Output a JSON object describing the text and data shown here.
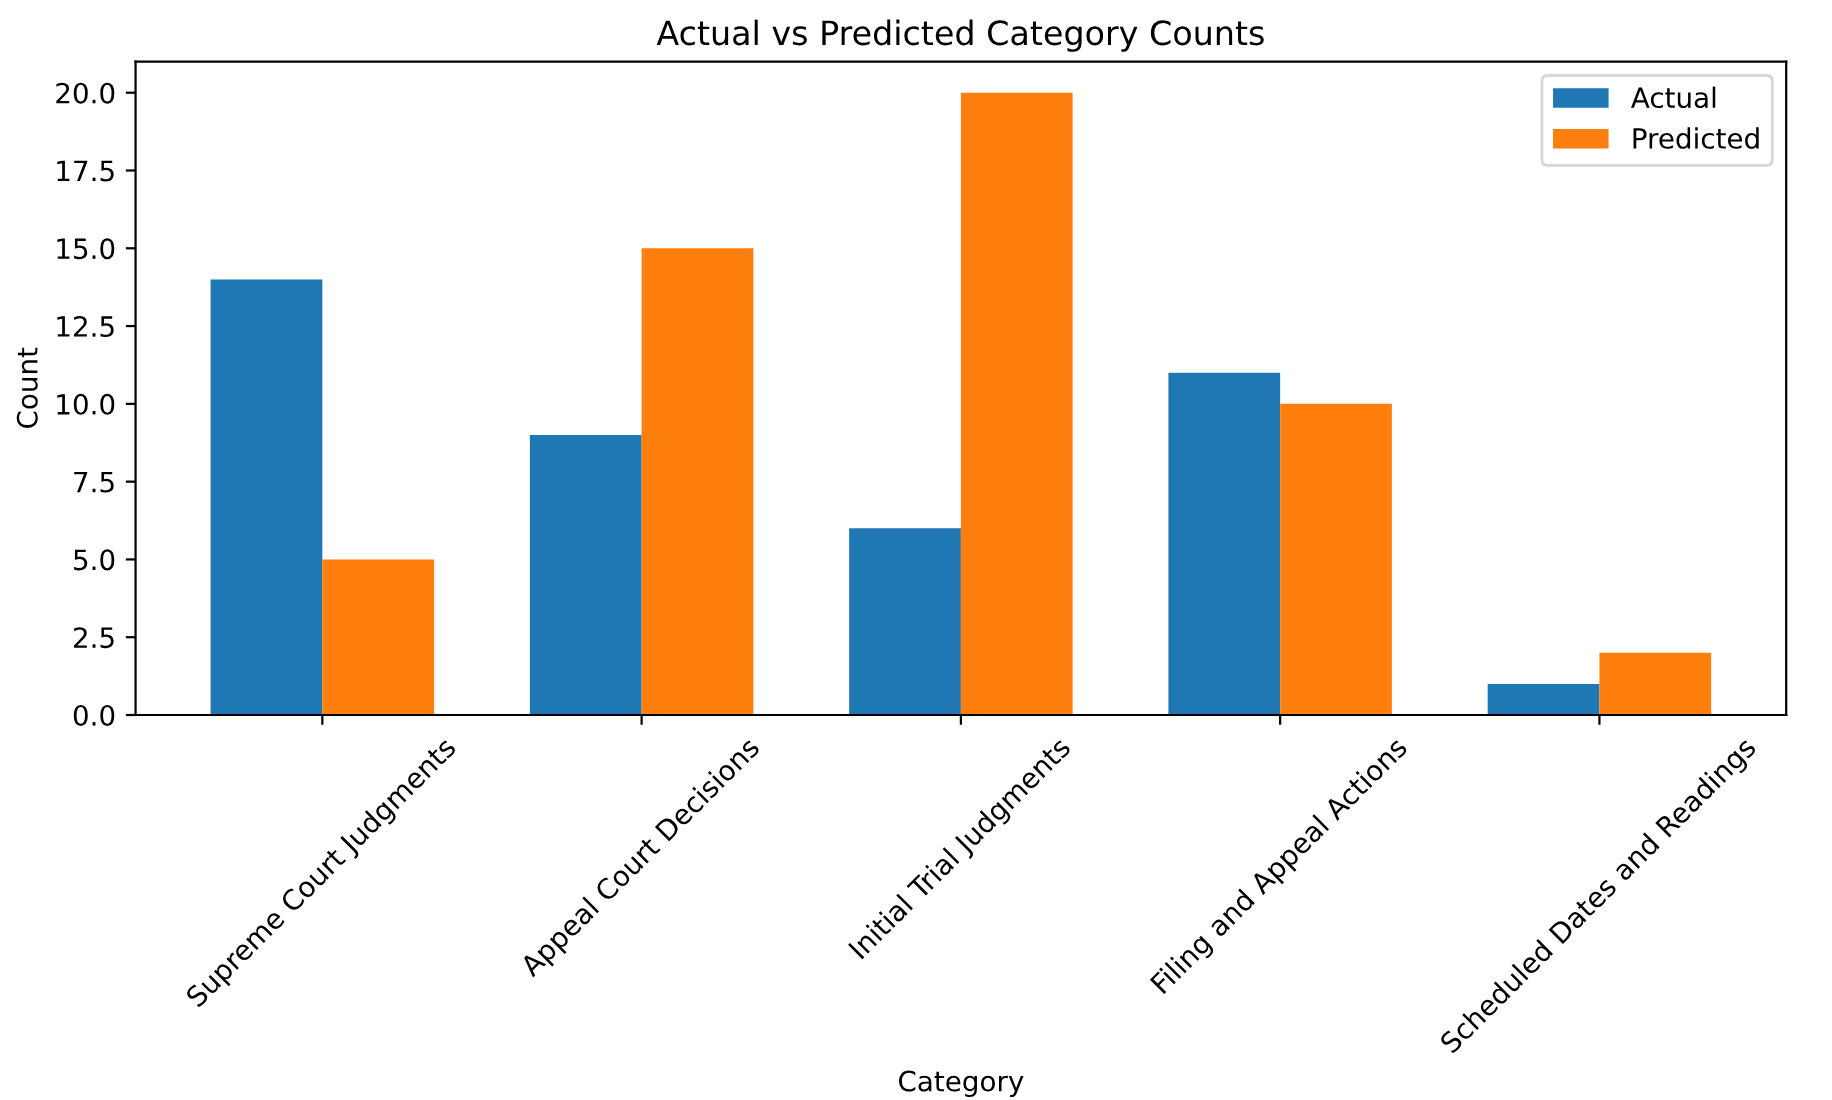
{
  "chart_data": {
    "type": "bar",
    "title": "Actual vs Predicted Category Counts",
    "xlabel": "Category",
    "ylabel": "Count",
    "categories": [
      "Supreme Court Judgments",
      "Appeal Court Decisions",
      "Initial Trial Judgments",
      "Filing and Appeal Actions",
      "Scheduled Dates and Readings"
    ],
    "series": [
      {
        "name": "Actual",
        "color": "#1f77b4",
        "values": [
          14,
          9,
          6,
          11,
          1
        ]
      },
      {
        "name": "Predicted",
        "color": "#ff7f0e",
        "values": [
          5,
          15,
          20,
          10,
          2
        ]
      }
    ],
    "ylim": [
      0,
      21
    ],
    "yticks": [
      {
        "value": 0,
        "label": "0.0"
      },
      {
        "value": 2.5,
        "label": "2.5"
      },
      {
        "value": 5,
        "label": "5.0"
      },
      {
        "value": 7.5,
        "label": "7.5"
      },
      {
        "value": 10,
        "label": "10.0"
      },
      {
        "value": 12.5,
        "label": "12.5"
      },
      {
        "value": 15,
        "label": "15.0"
      },
      {
        "value": 17.5,
        "label": "17.5"
      },
      {
        "value": 20,
        "label": "20.0"
      }
    ],
    "legend": "top right",
    "grid": false
  }
}
